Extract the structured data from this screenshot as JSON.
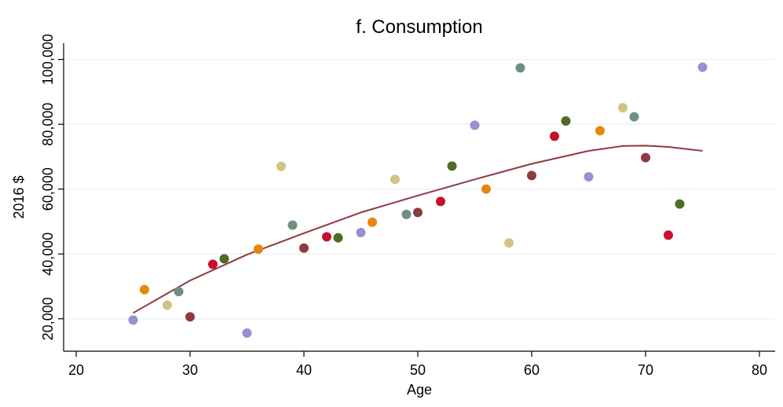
{
  "chart_data": {
    "type": "scatter",
    "title": "f. Consumption",
    "xlabel": "Age",
    "ylabel": "2016 $",
    "xlim": [
      20,
      80
    ],
    "ylim": [
      10000,
      105000
    ],
    "xticks": [
      20,
      30,
      40,
      50,
      60,
      70,
      80
    ],
    "xtick_labels": [
      "20",
      "30",
      "40",
      "50",
      "60",
      "70",
      "80"
    ],
    "yticks": [
      20000,
      40000,
      60000,
      80000,
      100000
    ],
    "ytick_labels": [
      "20,000",
      "40,000",
      "60,000",
      "80,000",
      "100,000"
    ],
    "grid": true,
    "legend": "none",
    "points": [
      {
        "x": 25,
        "y": 19600,
        "color": "#9b8fd0"
      },
      {
        "x": 26,
        "y": 29000,
        "color": "#e8850c"
      },
      {
        "x": 28,
        "y": 24200,
        "color": "#cfc483"
      },
      {
        "x": 29,
        "y": 28400,
        "color": "#6f8f85"
      },
      {
        "x": 30,
        "y": 20600,
        "color": "#8e3a3e"
      },
      {
        "x": 32,
        "y": 36800,
        "color": "#c8102e"
      },
      {
        "x": 33,
        "y": 38500,
        "color": "#4f6b25"
      },
      {
        "x": 35,
        "y": 15600,
        "color": "#9b8fd0"
      },
      {
        "x": 36,
        "y": 41500,
        "color": "#e8850c"
      },
      {
        "x": 38,
        "y": 67000,
        "color": "#cfc483"
      },
      {
        "x": 39,
        "y": 48900,
        "color": "#6f8f85"
      },
      {
        "x": 40,
        "y": 41800,
        "color": "#8e3a3e"
      },
      {
        "x": 42,
        "y": 45300,
        "color": "#c8102e"
      },
      {
        "x": 43,
        "y": 45000,
        "color": "#4f6b25"
      },
      {
        "x": 45,
        "y": 46600,
        "color": "#9b8fd0"
      },
      {
        "x": 46,
        "y": 49800,
        "color": "#e8850c"
      },
      {
        "x": 48,
        "y": 63000,
        "color": "#cfc483"
      },
      {
        "x": 49,
        "y": 52200,
        "color": "#6f8f85"
      },
      {
        "x": 50,
        "y": 52800,
        "color": "#8e3a3e"
      },
      {
        "x": 52,
        "y": 56200,
        "color": "#c8102e"
      },
      {
        "x": 53,
        "y": 67100,
        "color": "#4f6b25"
      },
      {
        "x": 55,
        "y": 79700,
        "color": "#9b8fd0"
      },
      {
        "x": 56,
        "y": 60000,
        "color": "#e8850c"
      },
      {
        "x": 58,
        "y": 43400,
        "color": "#cfc483"
      },
      {
        "x": 59,
        "y": 97400,
        "color": "#6f8f85"
      },
      {
        "x": 60,
        "y": 64200,
        "color": "#8e3a3e"
      },
      {
        "x": 62,
        "y": 76300,
        "color": "#c8102e"
      },
      {
        "x": 63,
        "y": 81000,
        "color": "#4f6b25"
      },
      {
        "x": 65,
        "y": 63800,
        "color": "#9b8fd0"
      },
      {
        "x": 66,
        "y": 78000,
        "color": "#e8850c"
      },
      {
        "x": 68,
        "y": 85100,
        "color": "#cfc483"
      },
      {
        "x": 69,
        "y": 82300,
        "color": "#6f8f85"
      },
      {
        "x": 70,
        "y": 69700,
        "color": "#8e3a3e"
      },
      {
        "x": 72,
        "y": 45800,
        "color": "#c8102e"
      },
      {
        "x": 73,
        "y": 55400,
        "color": "#4f6b25"
      },
      {
        "x": 75,
        "y": 97600,
        "color": "#9b8fd0"
      }
    ],
    "fit_line": {
      "color": "#8e3a3e",
      "x": [
        25,
        30,
        35,
        40,
        45,
        50,
        55,
        60,
        65,
        68,
        70,
        72,
        75
      ],
      "y": [
        21800,
        31800,
        39800,
        46400,
        52800,
        58000,
        63000,
        67800,
        71800,
        73300,
        73400,
        73000,
        71800
      ]
    }
  }
}
